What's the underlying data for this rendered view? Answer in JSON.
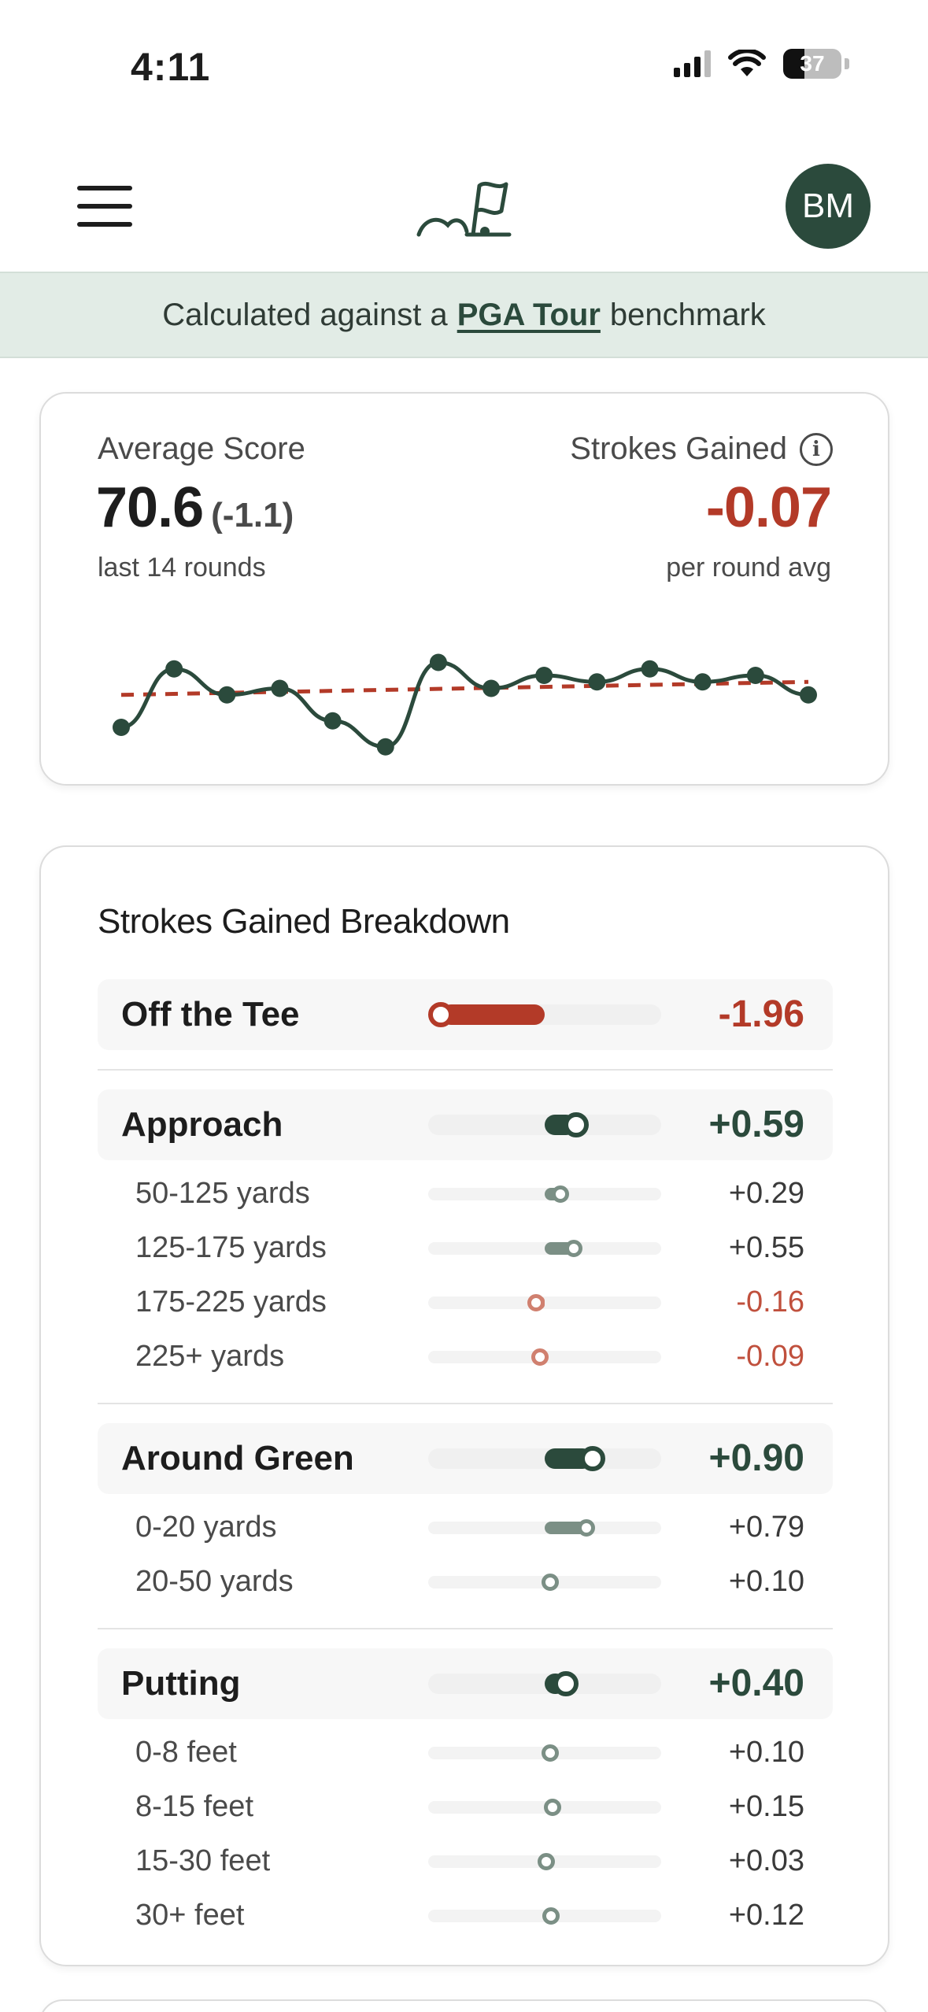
{
  "status_bar": {
    "time": "4:11",
    "battery": "37"
  },
  "header": {
    "avatar_initials": "BM"
  },
  "banner": {
    "prefix": "Calculated against a",
    "link": "PGA Tour",
    "suffix": "benchmark"
  },
  "summary": {
    "avg_label": "Average Score",
    "avg_value": "70.6",
    "avg_delta": "(-1.1)",
    "avg_sub": "last 14 rounds",
    "sg_label": "Strokes Gained",
    "sg_value": "-0.07",
    "sg_sub": "per round avg"
  },
  "chart_data": {
    "type": "line",
    "x": [
      1,
      2,
      3,
      4,
      5,
      6,
      7,
      8,
      9,
      10,
      11,
      12,
      13,
      14
    ],
    "series": [
      {
        "values": [
          0.8,
          0.35,
          0.55,
          0.5,
          0.75,
          0.95,
          0.3,
          0.5,
          0.4,
          0.45,
          0.35,
          0.45,
          0.4,
          0.55
        ]
      }
    ],
    "trend": [
      0.55,
      0.45
    ],
    "colors": {
      "line": "#2b4a3c",
      "trend": "#b33a28"
    },
    "ylim": [
      0,
      1
    ]
  },
  "breakdown": {
    "title": "Strokes Gained Breakdown",
    "colors": {
      "positive": "#2b4a3c",
      "positive_sub": "#7b8f85",
      "negative": "#b33a28",
      "negative_sub": "#d0806f"
    },
    "scale_max": 2.2,
    "categories": [
      {
        "name": "Off the Tee",
        "value": "-1.96",
        "num": -1.96,
        "subs": []
      },
      {
        "name": "Approach",
        "value": "+0.59",
        "num": 0.59,
        "subs": [
          {
            "name": "50-125 yards",
            "value": "+0.29",
            "num": 0.29
          },
          {
            "name": "125-175 yards",
            "value": "+0.55",
            "num": 0.55
          },
          {
            "name": "175-225 yards",
            "value": "-0.16",
            "num": -0.16
          },
          {
            "name": "225+ yards",
            "value": "-0.09",
            "num": -0.09
          }
        ]
      },
      {
        "name": "Around Green",
        "value": "+0.90",
        "num": 0.9,
        "subs": [
          {
            "name": "0-20 yards",
            "value": "+0.79",
            "num": 0.79
          },
          {
            "name": "20-50 yards",
            "value": "+0.10",
            "num": 0.1
          }
        ]
      },
      {
        "name": "Putting",
        "value": "+0.40",
        "num": 0.4,
        "subs": [
          {
            "name": "0-8 feet",
            "value": "+0.10",
            "num": 0.1
          },
          {
            "name": "8-15 feet",
            "value": "+0.15",
            "num": 0.15
          },
          {
            "name": "15-30 feet",
            "value": "+0.03",
            "num": 0.03
          },
          {
            "name": "30+ feet",
            "value": "+0.12",
            "num": 0.12
          }
        ]
      }
    ]
  }
}
